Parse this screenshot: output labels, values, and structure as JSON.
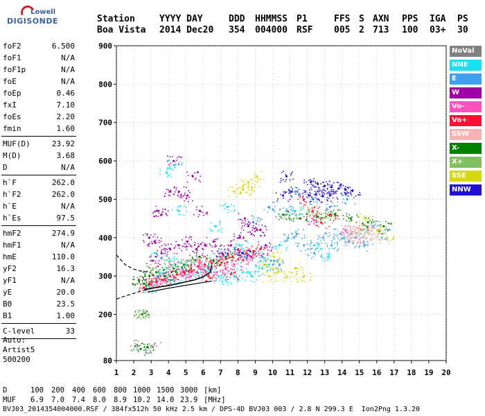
{
  "logo": {
    "line1": "Lowell",
    "line2": "DIGISONDE"
  },
  "header": {
    "row1": [
      "Station",
      "YYYY DAY",
      "DDD",
      "HHMMSS",
      "P1",
      "FFS",
      "S",
      "AXN",
      "PPS",
      "IGA",
      "PS"
    ],
    "row2": [
      "Boa Vista",
      "2014 Dec20",
      "354",
      "004000",
      "RSF",
      "005",
      "2",
      "713",
      "100",
      "03+",
      "30"
    ]
  },
  "params": [
    [
      {
        "k": "foF2",
        "v": "6.500"
      },
      {
        "k": "foF1",
        "v": "N/A"
      },
      {
        "k": "foF1p",
        "v": "N/A"
      },
      {
        "k": "foE",
        "v": "N/A"
      },
      {
        "k": "foEp",
        "v": "0.46"
      },
      {
        "k": "fxI",
        "v": "7.10"
      },
      {
        "k": "foEs",
        "v": "2.20"
      },
      {
        "k": "fmin",
        "v": "1.60"
      }
    ],
    [
      {
        "k": "MUF(D)",
        "v": "23.92"
      },
      {
        "k": "M(D)",
        "v": "3.68"
      },
      {
        "k": "D",
        "v": "N/A"
      }
    ],
    [
      {
        "k": "h`F",
        "v": "262.0"
      },
      {
        "k": "h`F2",
        "v": "262.0"
      },
      {
        "k": "h`E",
        "v": "N/A"
      },
      {
        "k": "h`Es",
        "v": "97.5"
      }
    ],
    [
      {
        "k": "hmF2",
        "v": "274.9"
      },
      {
        "k": "hmF1",
        "v": "N/A"
      },
      {
        "k": "hmE",
        "v": "110.0"
      },
      {
        "k": "yF2",
        "v": "16.3"
      },
      {
        "k": "yF1",
        "v": "N/A"
      },
      {
        "k": "yE",
        "v": "20.0"
      },
      {
        "k": "B0",
        "v": "23.5"
      },
      {
        "k": "B1",
        "v": "1.00"
      }
    ],
    [
      {
        "k": "C-level",
        "v": "33"
      }
    ]
  ],
  "autoscaling": {
    "line1": "Auto:",
    "line2": "Artist5",
    "line3": "500200"
  },
  "legend": [
    {
      "label": "NoVal",
      "color": "#808080"
    },
    {
      "label": "NNE",
      "color": "#18e0f0"
    },
    {
      "label": "E",
      "color": "#3fa0f0"
    },
    {
      "label": "W",
      "color": "#a000a8"
    },
    {
      "label": "Vo-",
      "color": "#ff50c0"
    },
    {
      "label": "Vo+",
      "color": "#ff1030"
    },
    {
      "label": "SSW",
      "color": "#f8b0b0"
    },
    {
      "label": "X-",
      "color": "#008000"
    },
    {
      "label": "X+",
      "color": "#80c060"
    },
    {
      "label": "SSE",
      "color": "#d8d810"
    },
    {
      "label": "NNW",
      "color": "#2010d0"
    }
  ],
  "bottom": {
    "row_d": {
      "label": "D",
      "values": [
        "100",
        "200",
        "400",
        "600",
        "800",
        "1000",
        "1500",
        "3000"
      ],
      "unit": "[km]"
    },
    "row_muf": {
      "label": "MUF",
      "values": [
        "6.9",
        "7.0",
        "7.4",
        "8.0",
        "8.9",
        "10.2",
        "14.0",
        "23.9"
      ],
      "unit": "[MHz]"
    },
    "footer": "BVJ03_2014354004000.RSF / 384fx512h 50 kHz 2.5 km / DPS-4D BVJ03 003 / 2.8 N 299.3 E  Ion2Png 1.3.20"
  },
  "chart_data": {
    "type": "scatter",
    "xlim": [
      1,
      20
    ],
    "ylim": [
      80,
      900
    ],
    "x_ticks": [
      1,
      2,
      3,
      4,
      5,
      6,
      7,
      8,
      9,
      10,
      11,
      12,
      13,
      14,
      15,
      16,
      17,
      18,
      19,
      20
    ],
    "y_ticks": [
      80,
      200,
      300,
      400,
      500,
      600,
      700,
      800,
      900
    ],
    "grid": "dotted",
    "legend_placement": "right",
    "series": [
      {
        "name": "NNE",
        "color": "#18e0f0",
        "points": [
          [
            2.9,
            270
          ],
          [
            3.4,
            300
          ],
          [
            3.9,
            310
          ],
          [
            4.3,
            290
          ],
          [
            4.8,
            320
          ],
          [
            5.3,
            300
          ],
          [
            5.9,
            310
          ],
          [
            6.4,
            315
          ],
          [
            6.9,
            300
          ],
          [
            7.3,
            290
          ],
          [
            7.8,
            300
          ],
          [
            8.3,
            310
          ],
          [
            8.8,
            300
          ],
          [
            9.4,
            320
          ],
          [
            9.8,
            330
          ],
          [
            3.3,
            360
          ],
          [
            4.1,
            340
          ],
          [
            4.6,
            470
          ],
          [
            5.1,
            330
          ],
          [
            6.7,
            430
          ],
          [
            7.4,
            480
          ],
          [
            8.1,
            380
          ],
          [
            10.4,
            380
          ],
          [
            11.3,
            470
          ],
          [
            12.4,
            380
          ],
          [
            13.2,
            350
          ],
          [
            14.1,
            400
          ],
          [
            3.9,
            570
          ],
          [
            4.4,
            590
          ]
        ]
      },
      {
        "name": "E",
        "color": "#3fa0f0",
        "points": [
          [
            6.3,
            320
          ],
          [
            6.8,
            350
          ],
          [
            7.3,
            360
          ],
          [
            7.8,
            370
          ],
          [
            8.4,
            350
          ],
          [
            8.9,
            360
          ],
          [
            9.4,
            350
          ],
          [
            9.9,
            340
          ],
          [
            10.4,
            330
          ],
          [
            10.9,
            400
          ],
          [
            11.4,
            410
          ],
          [
            11.8,
            380
          ],
          [
            12.4,
            360
          ],
          [
            12.9,
            400
          ],
          [
            13.4,
            380
          ],
          [
            13.9,
            410
          ],
          [
            14.4,
            390
          ],
          [
            14.8,
            400
          ],
          [
            15.3,
            380
          ],
          [
            8.9,
            440
          ],
          [
            9.8,
            480
          ],
          [
            10.8,
            470
          ],
          [
            11.3,
            520
          ],
          [
            12.3,
            500
          ],
          [
            13.3,
            480
          ],
          [
            14.3,
            500
          ],
          [
            15.8,
            430
          ],
          [
            16.3,
            410
          ]
        ]
      },
      {
        "name": "W",
        "color": "#a000a8",
        "points": [
          [
            3.1,
            340
          ],
          [
            3.6,
            360
          ],
          [
            4.1,
            370
          ],
          [
            4.6,
            380
          ],
          [
            5.1,
            390
          ],
          [
            5.6,
            370
          ],
          [
            6.1,
            380
          ],
          [
            6.6,
            390
          ],
          [
            7.1,
            360
          ],
          [
            7.6,
            380
          ],
          [
            8.1,
            400
          ],
          [
            8.6,
            430
          ],
          [
            9.1,
            420
          ],
          [
            9.6,
            380
          ],
          [
            3.6,
            460
          ],
          [
            4.1,
            520
          ],
          [
            4.6,
            520
          ],
          [
            5.1,
            510
          ],
          [
            8.4,
            450
          ],
          [
            9.3,
            420
          ],
          [
            2.9,
            400
          ],
          [
            3.2,
            390
          ],
          [
            3.4,
            470
          ],
          [
            4.3,
            600
          ],
          [
            5.4,
            560
          ],
          [
            5.8,
            470
          ]
        ]
      },
      {
        "name": "Vo-",
        "color": "#ff50c0",
        "points": [
          [
            2.7,
            290
          ],
          [
            3.3,
            290
          ],
          [
            3.8,
            300
          ],
          [
            4.3,
            300
          ],
          [
            4.8,
            310
          ],
          [
            5.3,
            300
          ],
          [
            5.8,
            320
          ],
          [
            6.3,
            300
          ],
          [
            6.8,
            310
          ],
          [
            7.3,
            320
          ],
          [
            7.8,
            330
          ],
          [
            8.3,
            340
          ],
          [
            8.8,
            350
          ],
          [
            4.4,
            330
          ],
          [
            5.6,
            340
          ],
          [
            12.3,
            450
          ],
          [
            14.2,
            420
          ]
        ]
      },
      {
        "name": "Vo+",
        "color": "#ff1030",
        "points": [
          [
            2.6,
            270
          ],
          [
            2.9,
            280
          ],
          [
            3.3,
            285
          ],
          [
            3.7,
            290
          ],
          [
            4.1,
            300
          ],
          [
            4.5,
            305
          ],
          [
            4.9,
            310
          ],
          [
            5.3,
            320
          ],
          [
            5.7,
            325
          ],
          [
            6.1,
            330
          ],
          [
            6.5,
            335
          ],
          [
            6.9,
            340
          ],
          [
            7.3,
            345
          ],
          [
            7.7,
            350
          ],
          [
            8.1,
            355
          ],
          [
            8.5,
            360
          ],
          [
            8.9,
            365
          ],
          [
            9.3,
            370
          ],
          [
            6.3,
            300
          ],
          [
            7.6,
            305
          ],
          [
            11.8,
            500
          ],
          [
            12.3,
            470
          ],
          [
            12.8,
            440
          ],
          [
            13.3,
            460
          ]
        ]
      },
      {
        "name": "SSW",
        "color": "#f8b0b0",
        "points": [
          [
            14.1,
            410
          ],
          [
            14.3,
            420
          ],
          [
            14.6,
            415
          ],
          [
            14.9,
            425
          ],
          [
            15.2,
            420
          ],
          [
            15.5,
            430
          ],
          [
            15.8,
            425
          ],
          [
            16.1,
            410
          ],
          [
            14.4,
            395
          ],
          [
            14.7,
            400
          ],
          [
            15.0,
            395
          ],
          [
            15.4,
            400
          ]
        ]
      },
      {
        "name": "X-",
        "color": "#008000",
        "points": [
          [
            2.3,
            290
          ],
          [
            2.6,
            280
          ],
          [
            2.9,
            300
          ],
          [
            3.3,
            310
          ],
          [
            3.8,
            300
          ],
          [
            4.3,
            320
          ],
          [
            4.9,
            330
          ],
          [
            5.8,
            350
          ],
          [
            6.6,
            340
          ],
          [
            7.3,
            350
          ],
          [
            2.4,
            110
          ],
          [
            2.8,
            115
          ],
          [
            2.5,
            200
          ],
          [
            10.6,
            460
          ],
          [
            11.6,
            450
          ],
          [
            12.6,
            455
          ],
          [
            13.6,
            460
          ],
          [
            14.5,
            450
          ],
          [
            15.5,
            440
          ],
          [
            16.4,
            430
          ]
        ]
      },
      {
        "name": "X+",
        "color": "#80c060",
        "points": [
          [
            2.4,
            200
          ],
          [
            2.6,
            205
          ],
          [
            3.1,
            320
          ],
          [
            4.1,
            330
          ],
          [
            5.1,
            340
          ],
          [
            10.8,
            460
          ],
          [
            12.1,
            470
          ],
          [
            13.1,
            455
          ],
          [
            15.1,
            420
          ]
        ]
      },
      {
        "name": "SSE",
        "color": "#d8d810",
        "points": [
          [
            7.8,
            520
          ],
          [
            8.3,
            525
          ],
          [
            8.8,
            530
          ],
          [
            9.1,
            560
          ],
          [
            8.6,
            545
          ],
          [
            9.8,
            300
          ],
          [
            10.3,
            310
          ],
          [
            10.8,
            300
          ],
          [
            11.3,
            320
          ],
          [
            11.8,
            300
          ],
          [
            9.6,
            330
          ],
          [
            10.1,
            350
          ],
          [
            15.3,
            450
          ],
          [
            16.1,
            420
          ],
          [
            16.6,
            400
          ]
        ]
      },
      {
        "name": "NNW",
        "color": "#2010d0",
        "points": [
          [
            10.8,
            560
          ],
          [
            11.1,
            520
          ],
          [
            12.2,
            545
          ],
          [
            12.6,
            540
          ],
          [
            13.0,
            535
          ],
          [
            13.4,
            532
          ],
          [
            13.8,
            528
          ],
          [
            14.2,
            525
          ],
          [
            14.6,
            522
          ],
          [
            12.1,
            510
          ],
          [
            12.5,
            512
          ],
          [
            12.9,
            508
          ],
          [
            13.3,
            510
          ],
          [
            8.3,
            360
          ],
          [
            10.6,
            510
          ]
        ]
      },
      {
        "name": "NoVal",
        "color": "#808080",
        "points": [
          [
            2.2,
            120
          ],
          [
            3.1,
            115
          ]
        ]
      }
    ],
    "virtual_height_trace": {
      "color": "#000000",
      "points": [
        [
          2.6,
          265
        ],
        [
          3.0,
          268
        ],
        [
          3.5,
          272
        ],
        [
          4.0,
          275
        ],
        [
          4.5,
          280
        ],
        [
          5.0,
          285
        ],
        [
          5.5,
          290
        ],
        [
          6.0,
          298
        ],
        [
          6.4,
          310
        ],
        [
          6.5,
          330
        ]
      ]
    },
    "profile_dashed": {
      "color": "#000000",
      "points": [
        [
          1.0,
          240
        ],
        [
          1.5,
          248
        ],
        [
          2.0,
          255
        ],
        [
          2.5,
          262
        ],
        [
          3.0,
          268
        ],
        [
          3.5,
          272
        ],
        [
          4.0,
          276
        ]
      ]
    },
    "profile_dashed_upper": {
      "color": "#000000",
      "points": [
        [
          1.0,
          355
        ],
        [
          1.5,
          330
        ],
        [
          2.0,
          318
        ],
        [
          2.5,
          312
        ],
        [
          3.0,
          310
        ]
      ]
    },
    "model_curve": {
      "color": "#000000",
      "points": [
        [
          2.8,
          258
        ],
        [
          3.5,
          264
        ],
        [
          4.2,
          270
        ],
        [
          5.0,
          276
        ],
        [
          5.8,
          282
        ],
        [
          6.5,
          287
        ]
      ]
    }
  }
}
